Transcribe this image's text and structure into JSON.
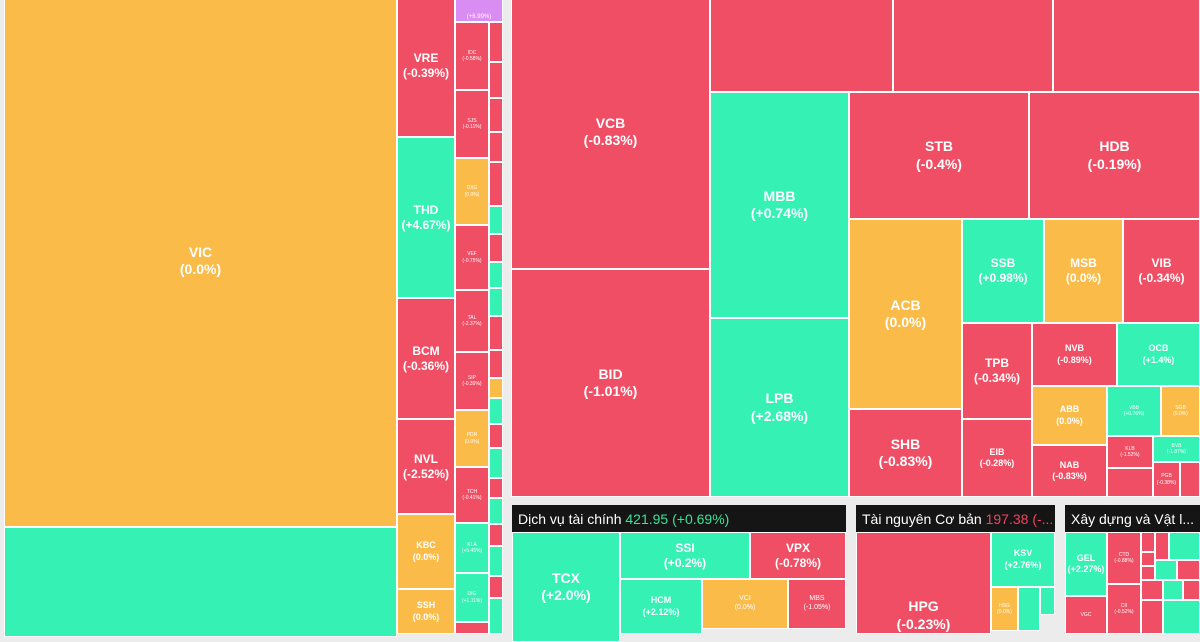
{
  "colors": {
    "down": "#f04e65",
    "up": "#35f1b4",
    "flat": "#fbbb49",
    "ceiling": "#d98cf2",
    "header_bg": "#151515"
  },
  "sectors": {
    "fin_services": {
      "name": "Dịch vụ tài chính",
      "value": "421.95",
      "change": "(+0.69%)"
    },
    "basic_resources": {
      "name": "Tài nguyên Cơ bản",
      "value": "197.38",
      "change": "(-..."
    },
    "construction": {
      "name": "Xây dựng và Vật l..."
    }
  },
  "tiles": {
    "VIC": {
      "code": "VIC",
      "pct": "(0.0%)"
    },
    "VRE": {
      "code": "VRE",
      "pct": "(-0.39%)"
    },
    "THD": {
      "code": "THD",
      "pct": "(+4.67%)"
    },
    "BCM": {
      "code": "BCM",
      "pct": "(-0.36%)"
    },
    "NVL": {
      "code": "NVL",
      "pct": "(-2.52%)"
    },
    "KBC": {
      "code": "KBC",
      "pct": "(0.0%)"
    },
    "SSH": {
      "code": "SSH",
      "pct": "(0.0%)"
    },
    "TOPV": {
      "code": "",
      "pct": "(+6.99%)"
    },
    "IDC": {
      "code": "IDC",
      "pct": "(-0.58%)"
    },
    "SJS": {
      "code": "SJS",
      "pct": "(-0.11%)"
    },
    "DXG": {
      "code": "DXG",
      "pct": "(0.0%)"
    },
    "VEF": {
      "code": "VEF",
      "pct": "(-0.75%)"
    },
    "TAL": {
      "code": "TAL",
      "pct": "(-2.37%)"
    },
    "SIP": {
      "code": "SIP",
      "pct": "(-0.39%)"
    },
    "PDR": {
      "code": "PDR",
      "pct": "(0.0%)"
    },
    "TCH": {
      "code": "TCH",
      "pct": "(-0.41%)"
    },
    "KLA": {
      "code": "KLA",
      "pct": "(+5.45%)"
    },
    "DIG": {
      "code": "DIG",
      "pct": "(+1.11%)"
    },
    "VCB": {
      "code": "VCB",
      "pct": "(-0.83%)"
    },
    "BID": {
      "code": "BID",
      "pct": "(-1.01%)"
    },
    "MBB": {
      "code": "MBB",
      "pct": "(+0.74%)"
    },
    "LPB": {
      "code": "LPB",
      "pct": "(+2.68%)"
    },
    "STB": {
      "code": "STB",
      "pct": "(-0.4%)"
    },
    "HDB": {
      "code": "HDB",
      "pct": "(-0.19%)"
    },
    "ACB": {
      "code": "ACB",
      "pct": "(0.0%)"
    },
    "SSB": {
      "code": "SSB",
      "pct": "(+0.98%)"
    },
    "MSB": {
      "code": "MSB",
      "pct": "(0.0%)"
    },
    "VIB": {
      "code": "VIB",
      "pct": "(-0.34%)"
    },
    "TPB": {
      "code": "TPB",
      "pct": "(-0.34%)"
    },
    "NVB": {
      "code": "NVB",
      "pct": "(-0.89%)"
    },
    "OCB": {
      "code": "OCB",
      "pct": "(+1.4%)"
    },
    "SHB": {
      "code": "SHB",
      "pct": "(-0.83%)"
    },
    "EIB": {
      "code": "EIB",
      "pct": "(-0.28%)"
    },
    "ABB": {
      "code": "ABB",
      "pct": "(0.0%)"
    },
    "VBB": {
      "code": "VBB",
      "pct": "(+0.76%)"
    },
    "SGB": {
      "code": "SGB",
      "pct": "(0.0%)"
    },
    "NAB": {
      "code": "NAB",
      "pct": "(-0.83%)"
    },
    "KLB": {
      "code": "KLB",
      "pct": "(-1.52%)"
    },
    "BVB": {
      "code": "BVB",
      "pct": "(-1.87%)"
    },
    "PGB": {
      "code": "PGB",
      "pct": "(-0.38%)"
    },
    "TCX": {
      "code": "TCX",
      "pct": "(+2.0%)"
    },
    "SSI": {
      "code": "SSI",
      "pct": "(+0.2%)"
    },
    "VPX": {
      "code": "VPX",
      "pct": "(-0.78%)"
    },
    "HCM": {
      "code": "HCM",
      "pct": "(+2.12%)"
    },
    "VCI": {
      "code": "VCI",
      "pct": "(0.0%)"
    },
    "MBS": {
      "code": "MBS",
      "pct": "(-1.05%)"
    },
    "HPG": {
      "code": "HPG",
      "pct": "(-0.23%)"
    },
    "KSV": {
      "code": "KSV",
      "pct": "(+2.76%)"
    },
    "HSG": {
      "code": "HSG",
      "pct": "(0.0%)"
    },
    "GEL": {
      "code": "GEL",
      "pct": "(+2.27%)"
    },
    "CTD": {
      "code": "CTD",
      "pct": "(-0.88%)"
    },
    "CII": {
      "code": "CII",
      "pct": "(-0.52%)"
    },
    "VGC": {
      "code": "VGC",
      "pct": ""
    }
  }
}
